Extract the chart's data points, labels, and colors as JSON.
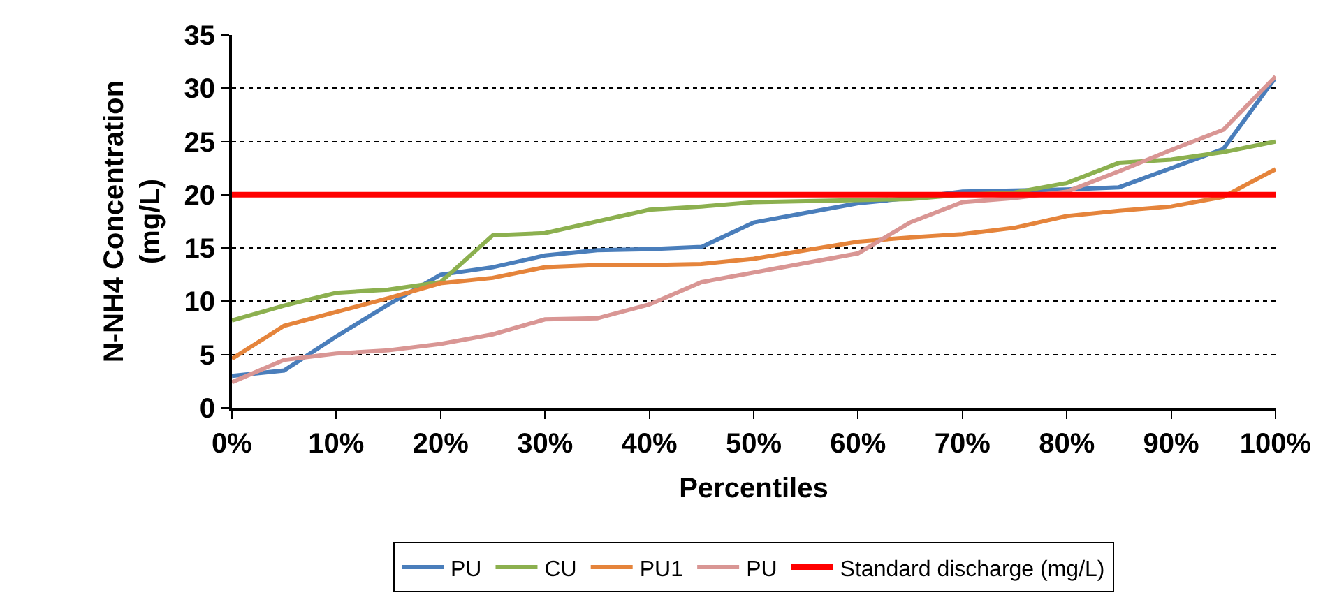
{
  "chart_data": {
    "type": "line",
    "xlabel": "Percentiles",
    "ylabel": "N-NH4 Concentration\n(mg/L)",
    "x": [
      0,
      5,
      10,
      15,
      20,
      25,
      30,
      35,
      40,
      45,
      50,
      55,
      60,
      65,
      70,
      75,
      80,
      85,
      90,
      95,
      100
    ],
    "series": [
      {
        "name": "PU",
        "color": "#4a7ebb",
        "values": [
          3,
          3.5,
          6.7,
          9.7,
          12.5,
          13.2,
          14.3,
          14.8,
          14.9,
          15.1,
          17.4,
          18.3,
          19.2,
          19.7,
          20.3,
          20.4,
          20.5,
          20.7,
          22.5,
          24.3,
          31
        ]
      },
      {
        "name": "CU",
        "color": "#8cb04f",
        "values": [
          8.2,
          9.6,
          10.8,
          11.1,
          11.8,
          16.2,
          16.4,
          17.5,
          18.6,
          18.9,
          19.3,
          19.4,
          19.5,
          19.6,
          20.0,
          20.2,
          21.1,
          23.0,
          23.3,
          24.0,
          25
        ]
      },
      {
        "name": "PU1",
        "color": "#e5843b",
        "values": [
          4.6,
          7.7,
          9.0,
          10.3,
          11.7,
          12.2,
          13.2,
          13.4,
          13.4,
          13.5,
          14.0,
          14.8,
          15.6,
          16.0,
          16.3,
          16.9,
          18.0,
          18.5,
          18.9,
          19.8,
          22.4
        ]
      },
      {
        "name": "PU",
        "color": "#d99694",
        "values": [
          2.4,
          4.5,
          5.1,
          5.4,
          6.0,
          6.9,
          8.3,
          8.4,
          9.7,
          11.8,
          12.7,
          13.6,
          14.5,
          17.4,
          19.3,
          19.7,
          20.3,
          22.2,
          24.2,
          26.1,
          31.1
        ]
      }
    ],
    "ref_lines": [
      {
        "axis": "y",
        "value": 20,
        "label": "Standard discharge (mg/L)",
        "color": "#ff0000"
      }
    ],
    "xlim": [
      0,
      100
    ],
    "xticks": [
      {
        "value": 0,
        "label": "0%"
      },
      {
        "value": 10,
        "label": "10%"
      },
      {
        "value": 20,
        "label": "20%"
      },
      {
        "value": 30,
        "label": "30%"
      },
      {
        "value": 40,
        "label": "40%"
      },
      {
        "value": 50,
        "label": "50%"
      },
      {
        "value": 60,
        "label": "60%"
      },
      {
        "value": 70,
        "label": "70%"
      },
      {
        "value": 80,
        "label": "80%"
      },
      {
        "value": 90,
        "label": "90%"
      },
      {
        "value": 100,
        "label": "100%"
      }
    ],
    "ylim": [
      0,
      35
    ],
    "yticks": [
      0,
      5,
      10,
      15,
      20,
      25,
      30,
      35
    ],
    "grid": "y",
    "legend": "bottom",
    "marker": "none",
    "line_style": "solid"
  }
}
